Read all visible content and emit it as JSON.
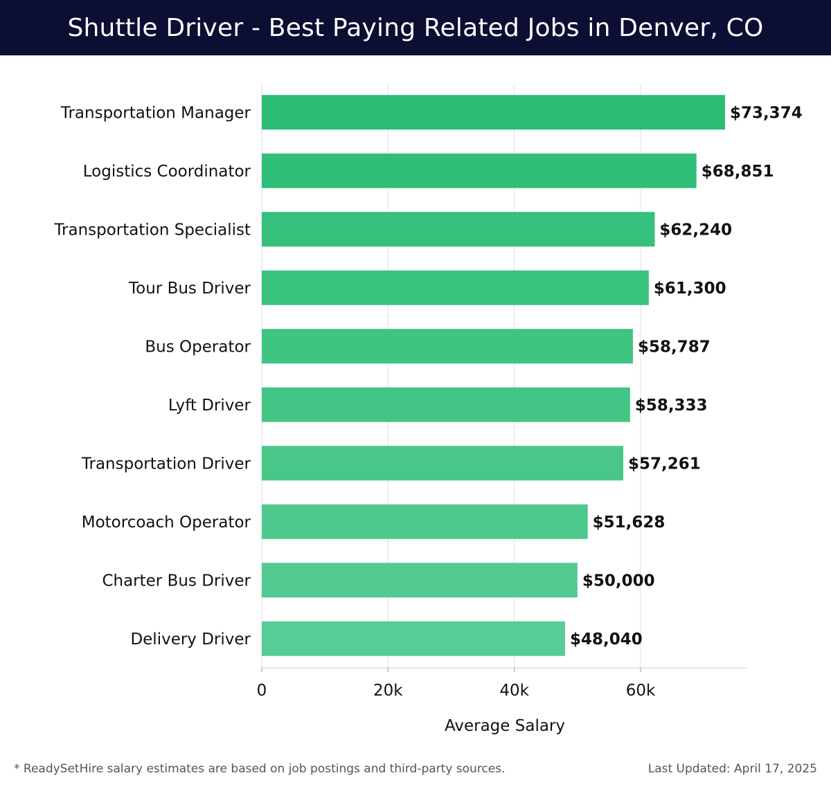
{
  "header": {
    "title": "Shuttle Driver - Best Paying Related Jobs in Denver, CO"
  },
  "footer": {
    "note": "* ReadySetHire salary estimates are based on job postings and third-party sources.",
    "updated": "Last Updated: April 17, 2025"
  },
  "colors": {
    "header_bg": "#0c0f33",
    "bar_top": "#2bbd74",
    "bar_bottom": "#57cc94"
  },
  "chart_data": {
    "type": "bar",
    "orientation": "horizontal",
    "title": "Shuttle Driver - Best Paying Related Jobs in Denver, CO",
    "xlabel": "Average Salary",
    "ylabel": "",
    "xlim": [
      0,
      77000
    ],
    "xticks": [
      0,
      20000,
      40000,
      60000
    ],
    "xtick_labels": [
      "0",
      "20k",
      "40k",
      "60k"
    ],
    "grid": true,
    "categories": [
      "Transportation Manager",
      "Logistics Coordinator",
      "Transportation Specialist",
      "Tour Bus Driver",
      "Bus Operator",
      "Lyft Driver",
      "Transportation Driver",
      "Motorcoach Operator",
      "Charter Bus Driver",
      "Delivery Driver"
    ],
    "values": [
      73374,
      68851,
      62240,
      61300,
      58787,
      58333,
      57261,
      51628,
      50000,
      48040
    ],
    "value_labels": [
      "$73,374",
      "$68,851",
      "$62,240",
      "$61,300",
      "$58,787",
      "$58,333",
      "$57,261",
      "$51,628",
      "$50,000",
      "$48,040"
    ]
  }
}
